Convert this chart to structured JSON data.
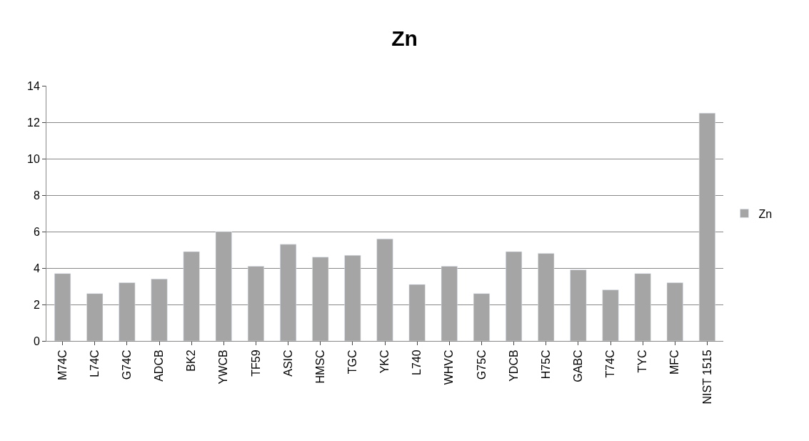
{
  "chart_data": {
    "type": "bar",
    "title": "Zn",
    "categories": [
      "M74C",
      "L74C",
      "G74C",
      "ADCB",
      "BK2",
      "YWCB",
      "TF59",
      "ASIC",
      "HMSC",
      "TGC",
      "YKC",
      "L740",
      "WHVC",
      "G75C",
      "YDCB",
      "H75C",
      "GABC",
      "T74C",
      "TYC",
      "MFC",
      "NIST 1515"
    ],
    "series": [
      {
        "name": "Zn",
        "color": "#a5a5a5",
        "values": [
          3.7,
          2.6,
          3.2,
          3.4,
          4.9,
          6.0,
          4.1,
          5.3,
          4.6,
          4.7,
          5.6,
          3.1,
          4.1,
          2.6,
          4.9,
          4.8,
          3.9,
          2.8,
          3.7,
          3.2,
          12.5
        ]
      }
    ],
    "ylim": [
      0,
      14
    ],
    "yticks": [
      0,
      2,
      4,
      6,
      8,
      10,
      12,
      14
    ],
    "grid": "y",
    "legend": "right"
  }
}
